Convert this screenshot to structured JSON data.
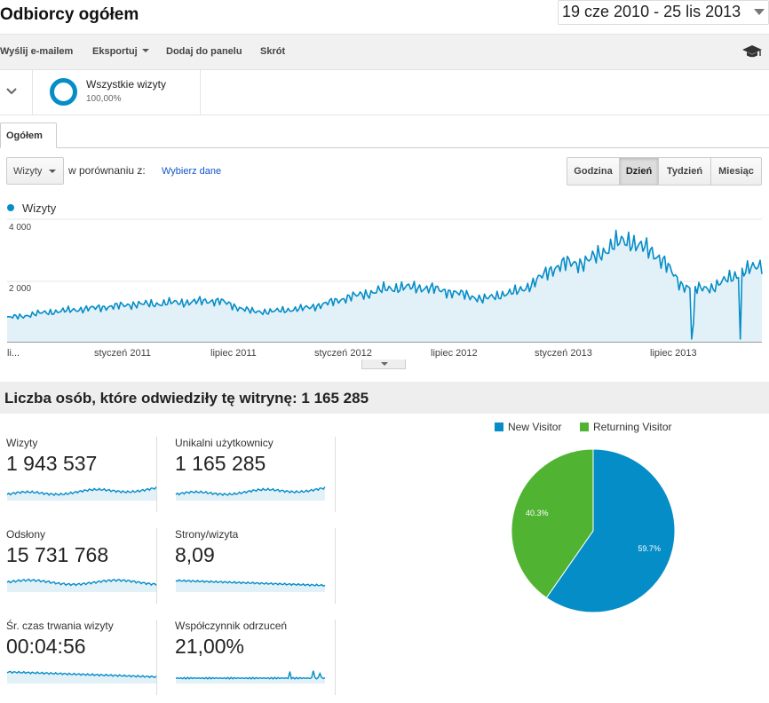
{
  "header": {
    "title": "Odbiorcy ogółem",
    "date_range": "19 cze 2010 - 25 lis 2013"
  },
  "toolbar": {
    "email_label": "Wyślij e-mailem",
    "export_label": "Eksportuj",
    "dashboard_label": "Dodaj do panelu",
    "shortcut_label": "Skrót",
    "icon": "graduation-cap-icon"
  },
  "segment": {
    "name": "Wszystkie wizyty",
    "percent": "100,00%"
  },
  "tabs": [
    {
      "label": "Ogółem"
    }
  ],
  "controls": {
    "metric_select": "Wizyty",
    "compare_label": "w porównaniu z:",
    "choose_data": "Wybierz dane",
    "granularity": [
      {
        "label": "Godzina",
        "active": false
      },
      {
        "label": "Dzień",
        "active": true
      },
      {
        "label": "Tydzień",
        "active": false
      },
      {
        "label": "Miesiąc",
        "active": false
      }
    ]
  },
  "chart_data": {
    "type": "area",
    "series": [
      {
        "name": "Wizyty",
        "color": "#058dc7"
      }
    ],
    "ylabels": [
      "4 000",
      "2 000"
    ],
    "ylim": [
      0,
      4000
    ],
    "xlabels": [
      "li...",
      "styczeń 2011",
      "lipiec 2011",
      "styczeń 2012",
      "lipiec 2012",
      "styczeń 2013",
      "lipiec 2013"
    ],
    "x_start": "2010-06-19",
    "x_end": "2013-11-25",
    "monthly_values": [
      800,
      850,
      950,
      1000,
      1050,
      1100,
      1150,
      1200,
      1250,
      1250,
      1300,
      1300,
      1350,
      1350,
      1150,
      1000,
      1000,
      1050,
      1100,
      1200,
      1350,
      1500,
      1600,
      1750,
      1800,
      1800,
      1750,
      1650,
      1550,
      1400,
      1550,
      1650,
      1900,
      2350,
      2600,
      2600,
      2850,
      3250,
      3350,
      3050,
      2700,
      1900,
      1750,
      1800,
      2100,
      2350,
      2550
    ]
  },
  "summary": {
    "text": "Liczba osób, które odwiedziły tę witrynę: 1 165 285"
  },
  "metrics": [
    {
      "label": "Wizyty",
      "value": "1 943 537"
    },
    {
      "label": "Unikalni użytkownicy",
      "value": "1 165 285"
    },
    {
      "label": "Odsłony",
      "value": "15 731 768"
    },
    {
      "label": "Strony/wizyta",
      "value": "8,09"
    },
    {
      "label": "Śr. czas trwania wizyty",
      "value": "00:04:56"
    },
    {
      "label": "Współczynnik odrzuceń",
      "value": "21,00%"
    }
  ],
  "pie": {
    "type": "pie",
    "slices": [
      {
        "name": "New Visitor",
        "value": 59.7,
        "label": "59.7%",
        "color": "#058dc7"
      },
      {
        "name": "Returning Visitor",
        "value": 40.3,
        "label": "40.3%",
        "color": "#50b432"
      }
    ]
  }
}
